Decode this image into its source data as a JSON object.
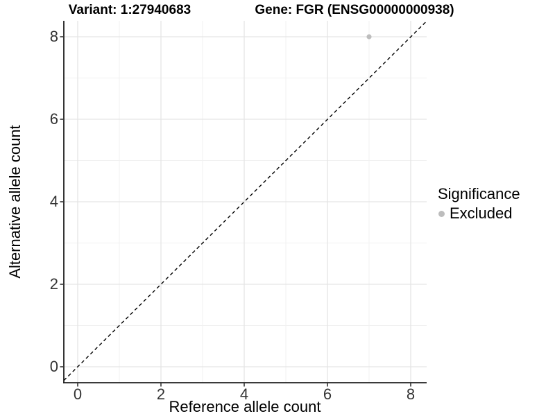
{
  "chart_data": {
    "type": "scatter",
    "titles": {
      "left": "Variant: 1:27940683",
      "right": "Gene: FGR (ENSG00000000938)"
    },
    "xlabel": "Reference allele count",
    "ylabel": "Alternative allele count",
    "xtick_labels": [
      "0",
      "2",
      "4",
      "6",
      "8"
    ],
    "ytick_labels": [
      "0",
      "2",
      "4",
      "6",
      "8"
    ],
    "xticks": [
      0,
      2,
      4,
      6,
      8
    ],
    "yticks": [
      0,
      2,
      4,
      6,
      8
    ],
    "xlim": [
      -0.33,
      8.38
    ],
    "ylim": [
      -0.39,
      8.39
    ],
    "grid": true,
    "points": [
      {
        "x": 7,
        "y": 8,
        "series": "Excluded"
      }
    ],
    "reference_line": {
      "style": "dashed",
      "equation": "y = x",
      "color": "#000000"
    },
    "legend": {
      "title": "Significance",
      "position": "right",
      "items": [
        {
          "label": "Excluded",
          "color": "#bdbdbd"
        }
      ]
    },
    "colors": {
      "point_excluded": "#bdbdbd",
      "grid_major": "#e5e5e5",
      "grid_minor": "#f1f1f1",
      "axis_line": "#1f1f1f",
      "tick_mark": "#333333",
      "tick_text": "#333333",
      "title_text": "#000000"
    }
  }
}
